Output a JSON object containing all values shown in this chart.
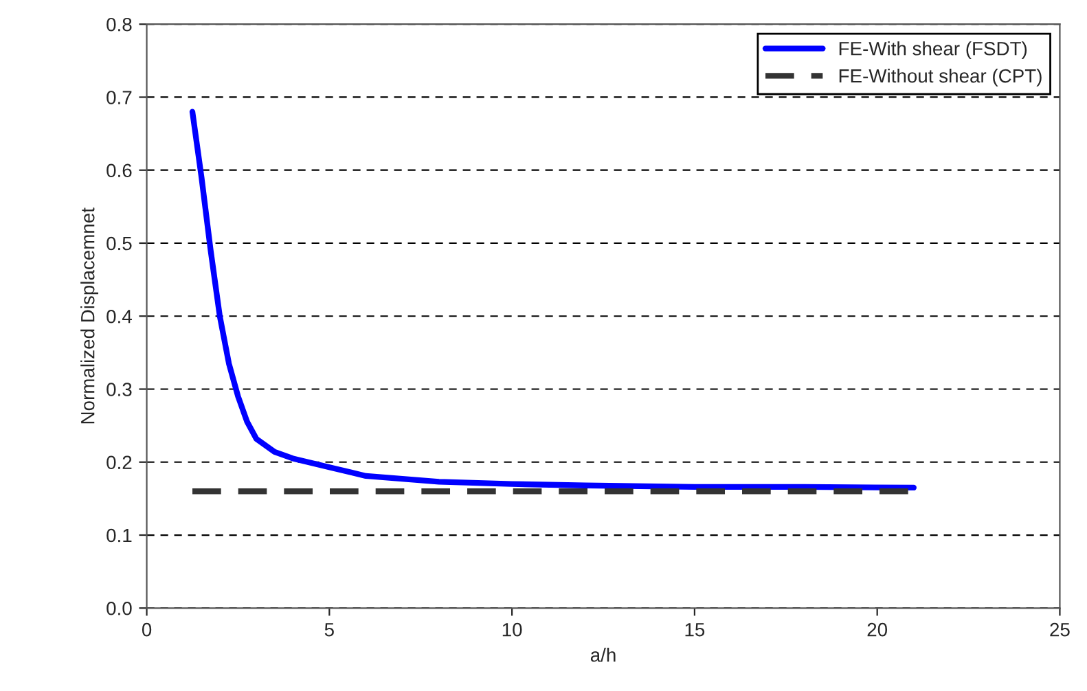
{
  "chart_data": {
    "type": "line",
    "xlabel": "a/h",
    "ylabel": "Normalized Displacemnet",
    "xlim": [
      0,
      25
    ],
    "xticks": [
      0,
      5,
      10,
      15,
      20,
      25
    ],
    "ylim": [
      0,
      0.8
    ],
    "yticks": [
      {
        "value": 0,
        "label": "0.0"
      },
      0.1,
      0.2,
      0.3,
      0.4,
      0.5,
      0.6,
      0.7,
      0.8
    ],
    "grid": "y",
    "legend": "top right",
    "marker": "none",
    "series": [
      {
        "name": "FE-With shear (FSDT)",
        "color": "#0000ff",
        "line_style": "solid",
        "x": [
          1.25,
          1.5,
          1.75,
          2,
          2.25,
          2.5,
          2.75,
          3,
          3.5,
          4,
          5,
          6,
          8,
          10,
          12,
          15,
          18,
          21
        ],
        "values": [
          0.68,
          0.59,
          0.49,
          0.4,
          0.335,
          0.29,
          0.255,
          0.232,
          0.214,
          0.205,
          0.193,
          0.181,
          0.173,
          0.17,
          0.168,
          0.166,
          0.166,
          0.165
        ]
      },
      {
        "name": "FE-Without shear (CPT)",
        "color": "#333333",
        "line_style": "dashed",
        "x": [
          1.25,
          21
        ],
        "values": [
          0.16,
          0.16
        ]
      }
    ]
  }
}
